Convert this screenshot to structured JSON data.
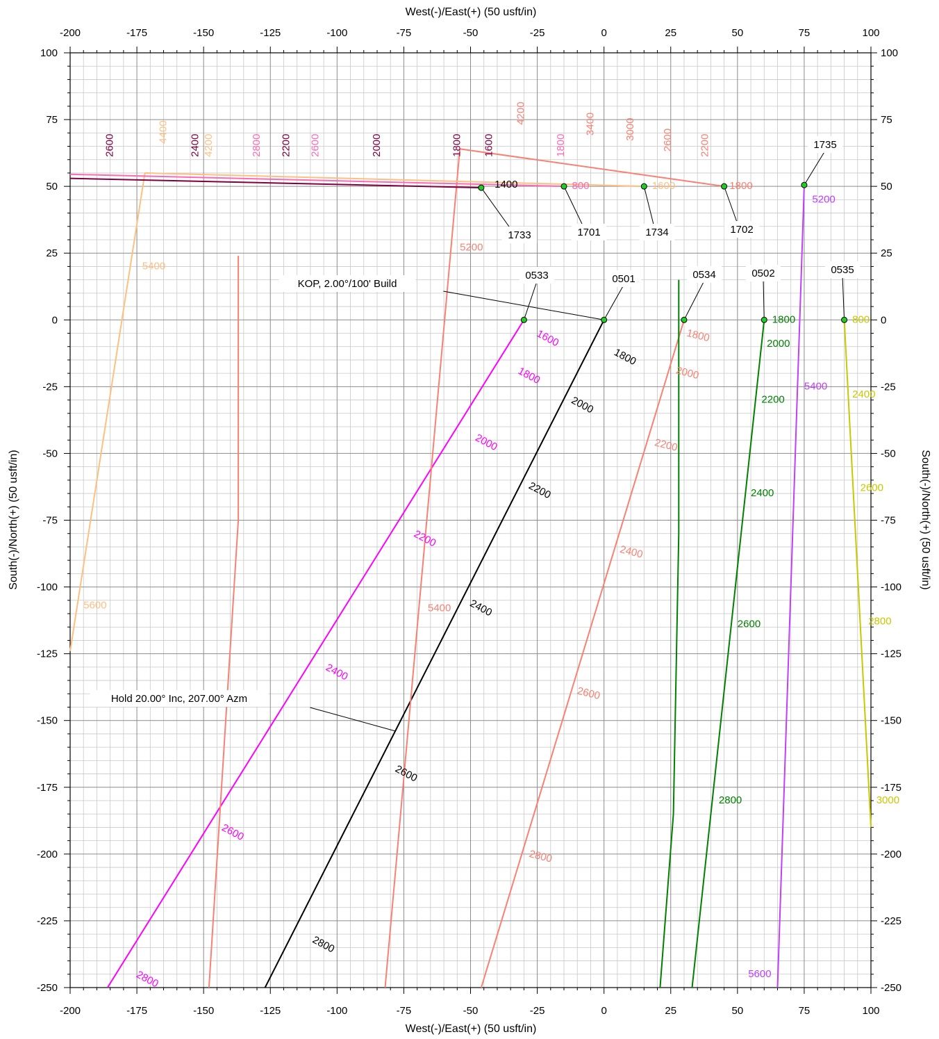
{
  "chart_data": {
    "type": "line",
    "title": "",
    "xlabel": "West(-)/East(+) (50 usft/in)",
    "ylabel": "South(-)/North(+) (50 usft/in)",
    "xlim": [
      -200,
      100
    ],
    "ylim": [
      -250,
      100
    ],
    "x_ticks": [
      "-200",
      "-175",
      "-150",
      "-125",
      "-100",
      "-75",
      "-50",
      "-25",
      "0",
      "25",
      "50",
      "75",
      "100"
    ],
    "y_ticks": [
      "100",
      "75",
      "50",
      "25",
      "0",
      "-25",
      "-50",
      "-75",
      "-100",
      "-125",
      "-150",
      "-175",
      "-200",
      "-225",
      "-250"
    ],
    "grid": true,
    "series": [
      {
        "color": "#ff00ff",
        "width": 2,
        "points": [
          [
            -30,
            0
          ],
          [
            -186,
            -250
          ]
        ]
      },
      {
        "color": "#000000",
        "width": 2,
        "points": [
          [
            0,
            0
          ],
          [
            -127,
            -250
          ]
        ]
      },
      {
        "color": "#fa8072",
        "width": 2,
        "points": [
          [
            30,
            0
          ],
          [
            -46,
            -250
          ]
        ]
      },
      {
        "color": "#008000",
        "width": 2,
        "points": [
          [
            60,
            0
          ],
          [
            33,
            -250
          ]
        ]
      },
      {
        "color": "#008000",
        "width": 2,
        "points": [
          [
            28,
            15
          ],
          [
            28,
            -80
          ],
          [
            26,
            -185
          ],
          [
            21,
            -250
          ]
        ]
      },
      {
        "color": "#bf3eff",
        "width": 2,
        "points": [
          [
            75,
            50
          ],
          [
            65,
            -250
          ]
        ]
      },
      {
        "color": "#c8c800",
        "width": 2,
        "points": [
          [
            90,
            0
          ],
          [
            100,
            -190
          ]
        ]
      },
      {
        "color": "#fa8072",
        "width": 2,
        "points": [
          [
            -137,
            24
          ],
          [
            -137,
            -75
          ],
          [
            -148,
            -250
          ]
        ]
      },
      {
        "color": "#fa8072",
        "width": 2,
        "points": [
          [
            45,
            50
          ],
          [
            -54,
            64
          ],
          [
            -82,
            -250
          ]
        ]
      },
      {
        "color": "#ffbf80",
        "width": 2,
        "points": [
          [
            15,
            50
          ],
          [
            -172,
            55
          ],
          [
            -200,
            -124
          ]
        ]
      },
      {
        "color": "#ff69b4",
        "width": 2,
        "points": [
          [
            -15,
            50
          ],
          [
            -200,
            54.5
          ]
        ]
      },
      {
        "color": "#800040",
        "width": 2,
        "points": [
          [
            -46,
            49.5
          ],
          [
            -200,
            53
          ]
        ]
      }
    ],
    "wells": [
      {
        "name": "0533",
        "x": -30,
        "y": 0
      },
      {
        "name": "0501",
        "x": 0,
        "y": 0
      },
      {
        "name": "0534",
        "x": 30,
        "y": 0
      },
      {
        "name": "0502",
        "x": 60,
        "y": 0
      },
      {
        "name": "0535",
        "x": 90,
        "y": 0
      },
      {
        "name": "1733",
        "x": -46,
        "y": 49.5
      },
      {
        "name": "1701",
        "x": -15,
        "y": 50
      },
      {
        "name": "1734",
        "x": 15,
        "y": 50
      },
      {
        "name": "1702",
        "x": 45,
        "y": 50
      },
      {
        "name": "1735",
        "x": 75,
        "y": 50.5
      }
    ],
    "annotations": [
      {
        "text": "KOP, 2.00°/100' Build",
        "x": 0,
        "y": 0
      },
      {
        "text": "Hold 20.00° Inc, 207.00° Azm",
        "x": -78,
        "y": -154
      }
    ],
    "depth_labels": [
      {
        "text": "1600",
        "x": -25,
        "y": -5,
        "color": "#ff00ff",
        "rot": 28
      },
      {
        "text": "1800",
        "x": -32,
        "y": -19,
        "color": "#ff00ff",
        "rot": 28
      },
      {
        "text": "2000",
        "x": -48,
        "y": -44,
        "color": "#ff00ff",
        "rot": 28
      },
      {
        "text": "2200",
        "x": -71,
        "y": -80,
        "color": "#ff00ff",
        "rot": 28
      },
      {
        "text": "2400",
        "x": -104,
        "y": -130,
        "color": "#ff00ff",
        "rot": 28
      },
      {
        "text": "2600",
        "x": -143,
        "y": -190,
        "color": "#ff00ff",
        "rot": 28
      },
      {
        "text": "2800",
        "x": -175,
        "y": -245,
        "color": "#ff00ff",
        "rot": 28
      },
      {
        "text": "1800",
        "x": 4,
        "y": -12,
        "color": "#000000",
        "rot": 28
      },
      {
        "text": "2000",
        "x": -12,
        "y": -30,
        "color": "#000000",
        "rot": 28
      },
      {
        "text": "2200",
        "x": -28,
        "y": -62,
        "color": "#000000",
        "rot": 28
      },
      {
        "text": "2400",
        "x": -50,
        "y": -106,
        "color": "#000000",
        "rot": 28
      },
      {
        "text": "2600",
        "x": -78,
        "y": -168,
        "color": "#000000",
        "rot": 28
      },
      {
        "text": "2800",
        "x": -109,
        "y": -232,
        "color": "#000000",
        "rot": 28
      },
      {
        "text": "1800",
        "x": 31,
        "y": -5,
        "color": "#fa8072",
        "rot": 14
      },
      {
        "text": "2000",
        "x": 27,
        "y": -19,
        "color": "#fa8072",
        "rot": 14
      },
      {
        "text": "2200",
        "x": 19,
        "y": -46,
        "color": "#fa8072",
        "rot": 14
      },
      {
        "text": "2400",
        "x": 6,
        "y": -86,
        "color": "#fa8072",
        "rot": 14
      },
      {
        "text": "2600",
        "x": -10,
        "y": -139,
        "color": "#fa8072",
        "rot": 14
      },
      {
        "text": "2800",
        "x": -28,
        "y": -200,
        "color": "#fa8072",
        "rot": 14
      },
      {
        "text": "1800",
        "x": 63,
        "y": 0,
        "color": "#008000",
        "rot": 0
      },
      {
        "text": "2000",
        "x": 61,
        "y": -9,
        "color": "#008000",
        "rot": 0
      },
      {
        "text": "2200",
        "x": 59,
        "y": -30,
        "color": "#008000",
        "rot": 0
      },
      {
        "text": "2400",
        "x": 55,
        "y": -65,
        "color": "#008000",
        "rot": 0
      },
      {
        "text": "2600",
        "x": 50,
        "y": -114,
        "color": "#008000",
        "rot": 0
      },
      {
        "text": "2800",
        "x": 43,
        "y": -180,
        "color": "#008000",
        "rot": 0
      },
      {
        "text": "5200",
        "x": 78,
        "y": 45,
        "color": "#bf3eff",
        "rot": 0
      },
      {
        "text": "5400",
        "x": 75,
        "y": -25,
        "color": "#bf3eff",
        "rot": 0
      },
      {
        "text": "5600",
        "x": 54,
        "y": -245,
        "color": "#bf3eff",
        "rot": 0
      },
      {
        "text": "800",
        "x": 93,
        "y": 0,
        "color": "#c8c800",
        "rot": 0
      },
      {
        "text": "2400",
        "x": 93,
        "y": -28,
        "color": "#c8c800",
        "rot": 0
      },
      {
        "text": "2600",
        "x": 96,
        "y": -63,
        "color": "#c8c800",
        "rot": 0
      },
      {
        "text": "2800",
        "x": 99,
        "y": -113,
        "color": "#c8c800",
        "rot": 0
      },
      {
        "text": "3000",
        "x": 102,
        "y": -180,
        "color": "#c8c800",
        "rot": 0
      },
      {
        "text": "1800",
        "x": 47,
        "y": 50,
        "color": "#fa8072",
        "rot": 0
      },
      {
        "text": "5200",
        "x": -54,
        "y": 27,
        "color": "#fa8072",
        "rot": 0
      },
      {
        "text": "5400",
        "x": -66,
        "y": -108,
        "color": "#fa8072",
        "rot": 0
      },
      {
        "text": "1600",
        "x": 18,
        "y": 50,
        "color": "#ffbf80",
        "rot": 0
      },
      {
        "text": "5400",
        "x": -173,
        "y": 20,
        "color": "#ffbf80",
        "rot": 0
      },
      {
        "text": "5600",
        "x": -195,
        "y": -107,
        "color": "#ffbf80",
        "rot": 0
      },
      {
        "text": "800",
        "x": -12,
        "y": 50,
        "color": "#ff69b4",
        "rot": 0
      },
      {
        "text": "1400",
        "x": -41,
        "y": 50.5,
        "color": "#000000",
        "rot": 0
      },
      {
        "text": "2600",
        "x": -185,
        "y": 61,
        "color": "#800040",
        "rot": -90
      },
      {
        "text": "2400",
        "x": -153,
        "y": 61,
        "color": "#800040",
        "rot": -90
      },
      {
        "text": "2200",
        "x": -119,
        "y": 61,
        "color": "#800040",
        "rot": -90
      },
      {
        "text": "2000",
        "x": -85,
        "y": 61,
        "color": "#800040",
        "rot": -90
      },
      {
        "text": "1800",
        "x": -55,
        "y": 61,
        "color": "#800040",
        "rot": -90
      },
      {
        "text": "1600",
        "x": -43,
        "y": 61,
        "color": "#800040",
        "rot": -90
      },
      {
        "text": "4400",
        "x": -165,
        "y": 66,
        "color": "#ffbf80",
        "rot": -90
      },
      {
        "text": "4200",
        "x": -148,
        "y": 61,
        "color": "#ffbf80",
        "rot": -90
      },
      {
        "text": "2800",
        "x": -130,
        "y": 61,
        "color": "#ff69b4",
        "rot": -90
      },
      {
        "text": "2600",
        "x": -108,
        "y": 61,
        "color": "#ff69b4",
        "rot": -90
      },
      {
        "text": "1800",
        "x": -16,
        "y": 61,
        "color": "#ff69b4",
        "rot": -90
      },
      {
        "text": "4200",
        "x": -31,
        "y": 73,
        "color": "#fa8072",
        "rot": -90
      },
      {
        "text": "3400",
        "x": -5,
        "y": 69,
        "color": "#fa8072",
        "rot": -90
      },
      {
        "text": "3000",
        "x": 10,
        "y": 67,
        "color": "#fa8072",
        "rot": -90
      },
      {
        "text": "2600",
        "x": 24,
        "y": 63,
        "color": "#fa8072",
        "rot": -90
      },
      {
        "text": "2200",
        "x": 38,
        "y": 61,
        "color": "#fa8072",
        "rot": -90
      }
    ]
  },
  "callouts": [
    {
      "name": "0533",
      "text": "0533"
    },
    {
      "name": "0501",
      "text": "0501"
    },
    {
      "name": "0534",
      "text": "0534"
    },
    {
      "name": "0502",
      "text": "0502"
    },
    {
      "name": "0535",
      "text": "0535"
    },
    {
      "name": "1733",
      "text": "1733"
    },
    {
      "name": "1701",
      "text": "1701"
    },
    {
      "name": "1734",
      "text": "1734"
    },
    {
      "name": "1702",
      "text": "1702"
    },
    {
      "name": "1735",
      "text": "1735"
    },
    {
      "name": "kop",
      "text": "KOP, 2.00°/100' Build"
    },
    {
      "name": "hold",
      "text": "Hold 20.00° Inc, 207.00° Azm"
    }
  ]
}
